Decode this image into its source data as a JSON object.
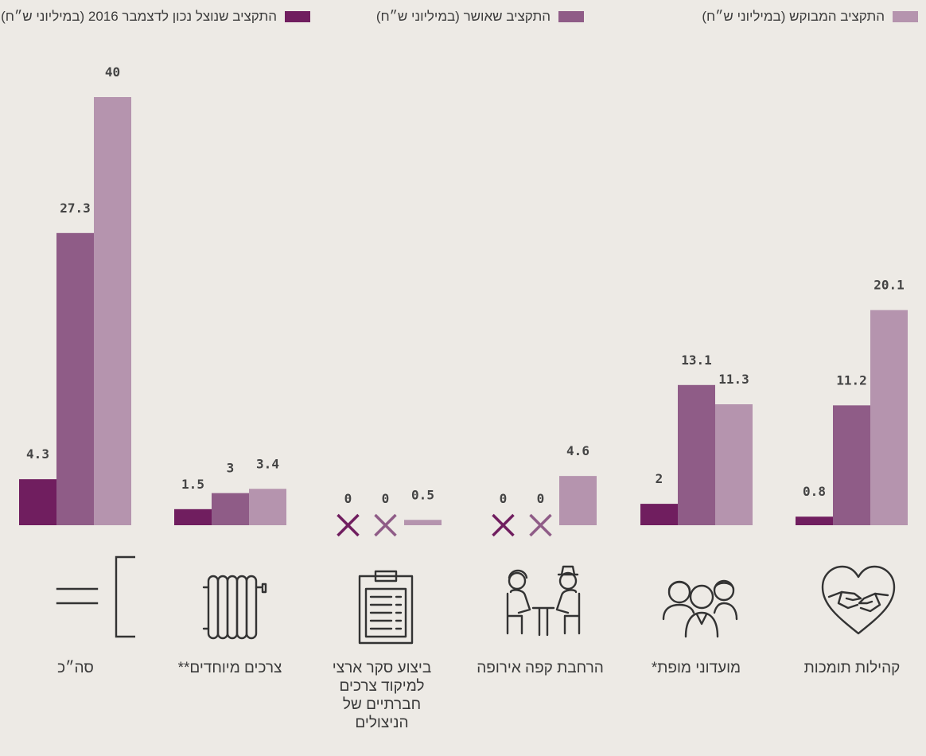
{
  "legend": {
    "items": [
      {
        "label": "התקציב המבוקש (במיליוני ש״ח)",
        "color": "#b594ae"
      },
      {
        "label": "התקציב שאושר (במיליוני ש״ח)",
        "color": "#8f5c87"
      },
      {
        "label": "התקציב שנוצל נכון לדצמבר 2016 (במיליוני ש״ח)",
        "color": "#701e5f"
      }
    ]
  },
  "chart_data": {
    "type": "bar",
    "direction": "rtl",
    "ylim": [
      0,
      40
    ],
    "categories": [
      "קהילות תומכות",
      "מועדוני מופת*",
      "הרחבת קפה אירופה",
      "ביצוע סקר ארצי למיקוד צרכים חברתיים של הניצולים",
      "צרכים מיוחדים**",
      "סה״כ"
    ],
    "series": [
      {
        "name": "התקציב שנוצל נכון לדצמבר 2016 (במיליוני ש״ח)",
        "color": "#701e5f",
        "values": [
          0.8,
          2,
          0,
          0,
          1.5,
          4.3
        ],
        "labels": [
          "0.8",
          "2",
          "0",
          "0",
          "1.5",
          "4.3"
        ]
      },
      {
        "name": "התקציב שאושר (במיליוני ש״ח)",
        "color": "#8f5c87",
        "values": [
          11.2,
          13.1,
          0,
          0,
          3,
          27.3
        ],
        "labels": [
          "11.2",
          "13.1",
          "0",
          "0",
          "3",
          "27.3"
        ]
      },
      {
        "name": "התקציב המבוקש (במיליוני ש״ח)",
        "color": "#b594ae",
        "values": [
          20.1,
          11.3,
          4.6,
          0.5,
          3.4,
          40
        ],
        "labels": [
          "20.1",
          "11.3",
          "4.6",
          "0.5",
          "3.4",
          "40"
        ]
      }
    ],
    "zero_markers": [
      "×"
    ],
    "grid": false,
    "legend_position": "top"
  },
  "icons": [
    "heart-hands-icon",
    "seniors-group-icon",
    "cafe-meeting-icon",
    "clipboard-survey-icon",
    "radiator-icon",
    "total-equals-icon"
  ]
}
